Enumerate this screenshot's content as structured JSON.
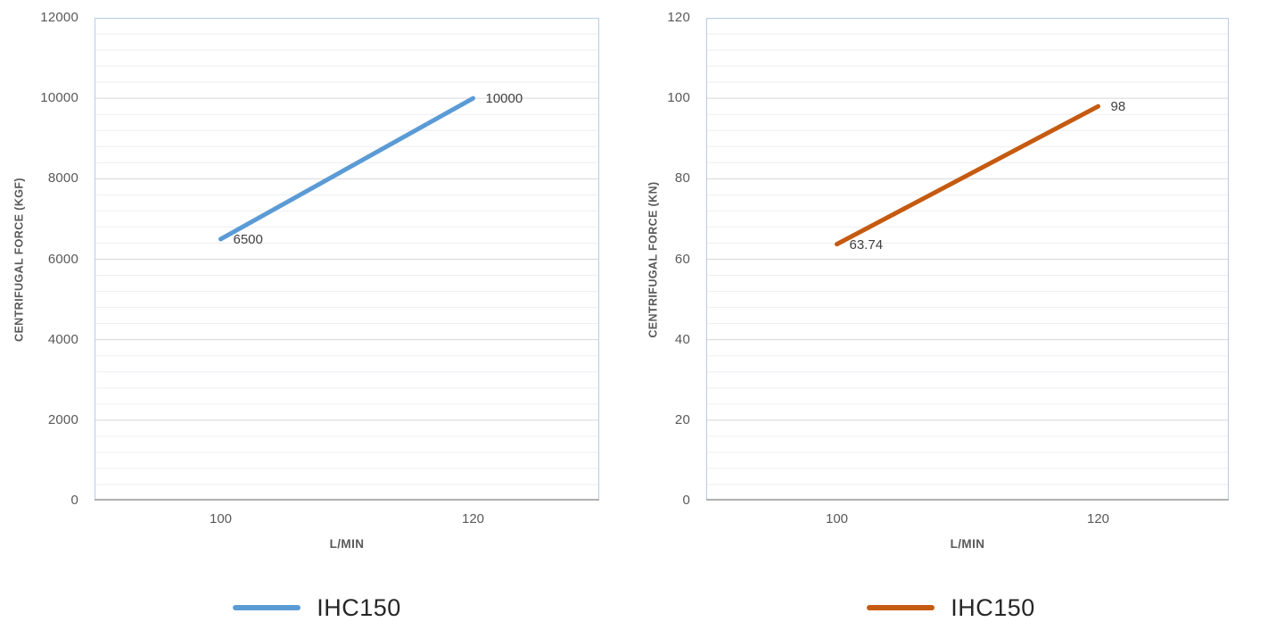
{
  "colors": {
    "blue_series": "#5B9BD5",
    "orange_series": "#C55A11",
    "major_grid": "#D7D7DC",
    "minor_grid": "#EEEEF3",
    "plot_border": "#B9CBE5",
    "axis_line": "#B0B0B3",
    "tick_text": "#595959",
    "data_label_text": "#3F3F3F",
    "legend_text": "#262626"
  },
  "chart_data": [
    {
      "type": "line",
      "title": "",
      "xlabel": "L/MIN",
      "ylabel": "CENTRIFUGAL FORCE (KGF)",
      "x": [
        100,
        120
      ],
      "x_ticks": [
        "100",
        "120"
      ],
      "ylim": [
        0,
        12000
      ],
      "y_major_step": 2000,
      "y_minor_per_major": 5,
      "y_ticks": [
        "12000",
        "10000",
        "8000",
        "6000",
        "4000",
        "2000",
        "0"
      ],
      "grid": "major+minor horizontal",
      "legend_position": "bottom",
      "series": [
        {
          "name": "IHC150",
          "color": "#5B9BD5",
          "values": [
            6500,
            10000
          ],
          "point_labels": [
            "6500",
            "10000"
          ]
        }
      ]
    },
    {
      "type": "line",
      "title": "",
      "xlabel": "L/MIN",
      "ylabel": "CENTRIFUGAL FORCE (KN)",
      "x": [
        100,
        120
      ],
      "x_ticks": [
        "100",
        "120"
      ],
      "ylim": [
        0,
        120
      ],
      "y_major_step": 20,
      "y_minor_per_major": 5,
      "y_ticks": [
        "120",
        "100",
        "80",
        "60",
        "40",
        "20",
        "0"
      ],
      "grid": "major+minor horizontal",
      "legend_position": "bottom",
      "series": [
        {
          "name": "IHC150",
          "color": "#C55A11",
          "values": [
            63.74,
            98
          ],
          "point_labels": [
            "63.74",
            "98"
          ]
        }
      ]
    }
  ]
}
